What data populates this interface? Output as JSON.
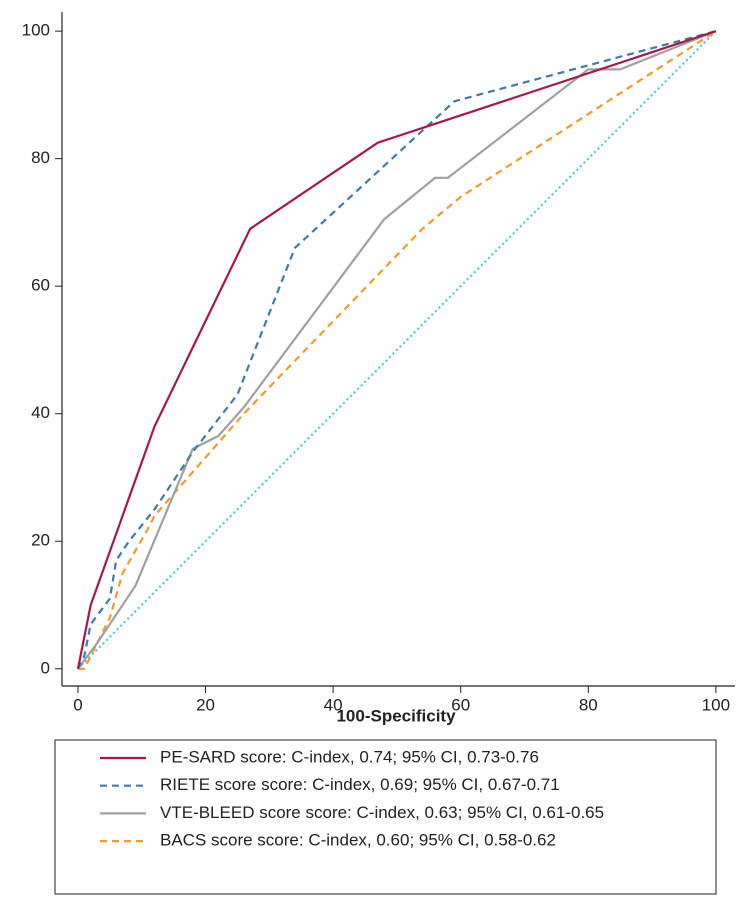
{
  "chart_data": {
    "type": "line",
    "xlabel": "100-Specificity",
    "xlim": [
      -2.5,
      103
    ],
    "ylim": [
      -2.7,
      103
    ],
    "xticks": [
      0,
      20,
      40,
      60,
      80,
      100
    ],
    "yticks": [
      0,
      20,
      40,
      60,
      80,
      100
    ],
    "series": [
      {
        "name": "PE-SARD score: C-index, 0.74; 95% CI, 0.73-0.76",
        "color": "#a8174a",
        "dash": "solid",
        "x": [
          0,
          2,
          12,
          27,
          47,
          100
        ],
        "values": [
          0,
          10,
          38,
          69,
          82.5,
          100
        ]
      },
      {
        "name": "RIETE score score: C-index, 0.69; 95% CI, 0.67-0.71",
        "color": "#3f7aa8",
        "dash": "dashed",
        "x": [
          0,
          1,
          2,
          5,
          6,
          8,
          12,
          18,
          25,
          34,
          59,
          100
        ],
        "values": [
          0,
          2,
          7,
          11,
          17,
          20,
          25,
          34,
          43,
          66,
          89,
          100
        ]
      },
      {
        "name": "VTE-BLEED score score: C-index, 0.63; 95% CI, 0.61-0.65",
        "color": "#a0a0a0",
        "dash": "solid",
        "x": [
          0,
          3,
          9,
          18,
          22,
          26,
          48,
          56,
          58,
          80,
          85,
          100
        ],
        "values": [
          0,
          4,
          13,
          34.5,
          36.5,
          41,
          70.5,
          77,
          77,
          94,
          94,
          100
        ]
      },
      {
        "name": "BACS score score: C-index, 0.60; 95% CI, 0.58-0.62",
        "color": "#f39a2c",
        "dash": "dashed",
        "x": [
          0,
          1,
          5,
          7,
          11,
          12,
          26,
          54,
          60,
          100
        ],
        "values": [
          0,
          0,
          8,
          15,
          22,
          24,
          40,
          69,
          74,
          100
        ]
      },
      {
        "color": "#5bc0de",
        "dash": "dotted",
        "x": [
          0,
          100
        ],
        "values": [
          0,
          100
        ]
      }
    ]
  }
}
